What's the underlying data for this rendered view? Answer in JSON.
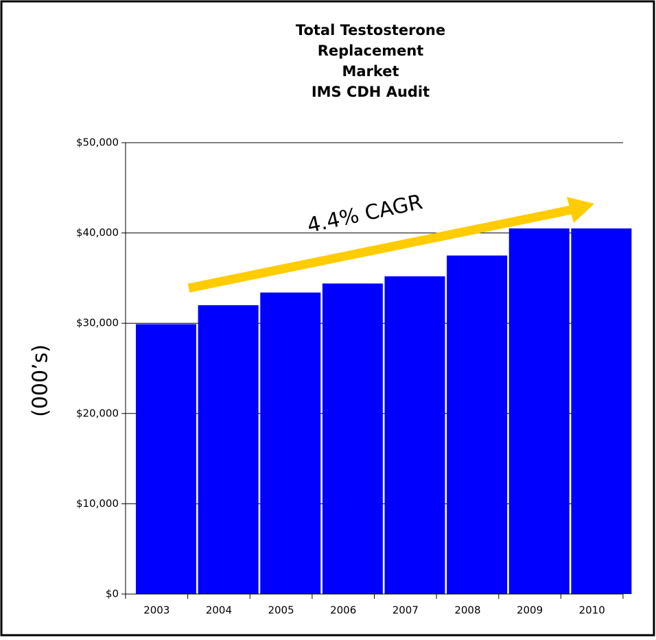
{
  "chart_data": {
    "type": "bar",
    "title": [
      "Total Testosterone",
      "Replacement",
      "Market",
      "IMS CDH Audit"
    ],
    "y_label": "(000’s)",
    "annotation": "4.4% CAGR",
    "categories": [
      "2003",
      "2004",
      "2005",
      "2006",
      "2007",
      "2008",
      "2009",
      "2010"
    ],
    "values": [
      29900,
      32000,
      33400,
      34400,
      35200,
      37500,
      40500,
      40500
    ],
    "color": "#0000ff",
    "ylim": [
      0,
      50000
    ],
    "yticks": [
      {
        "value": 0,
        "label": "$0"
      },
      {
        "value": 10000,
        "label": "$10,000"
      },
      {
        "value": 20000,
        "label": "$20,000"
      },
      {
        "value": 30000,
        "label": "$30,000"
      },
      {
        "value": 40000,
        "label": "$40,000"
      },
      {
        "value": 50000,
        "label": "$50,000"
      }
    ],
    "grid": true
  }
}
